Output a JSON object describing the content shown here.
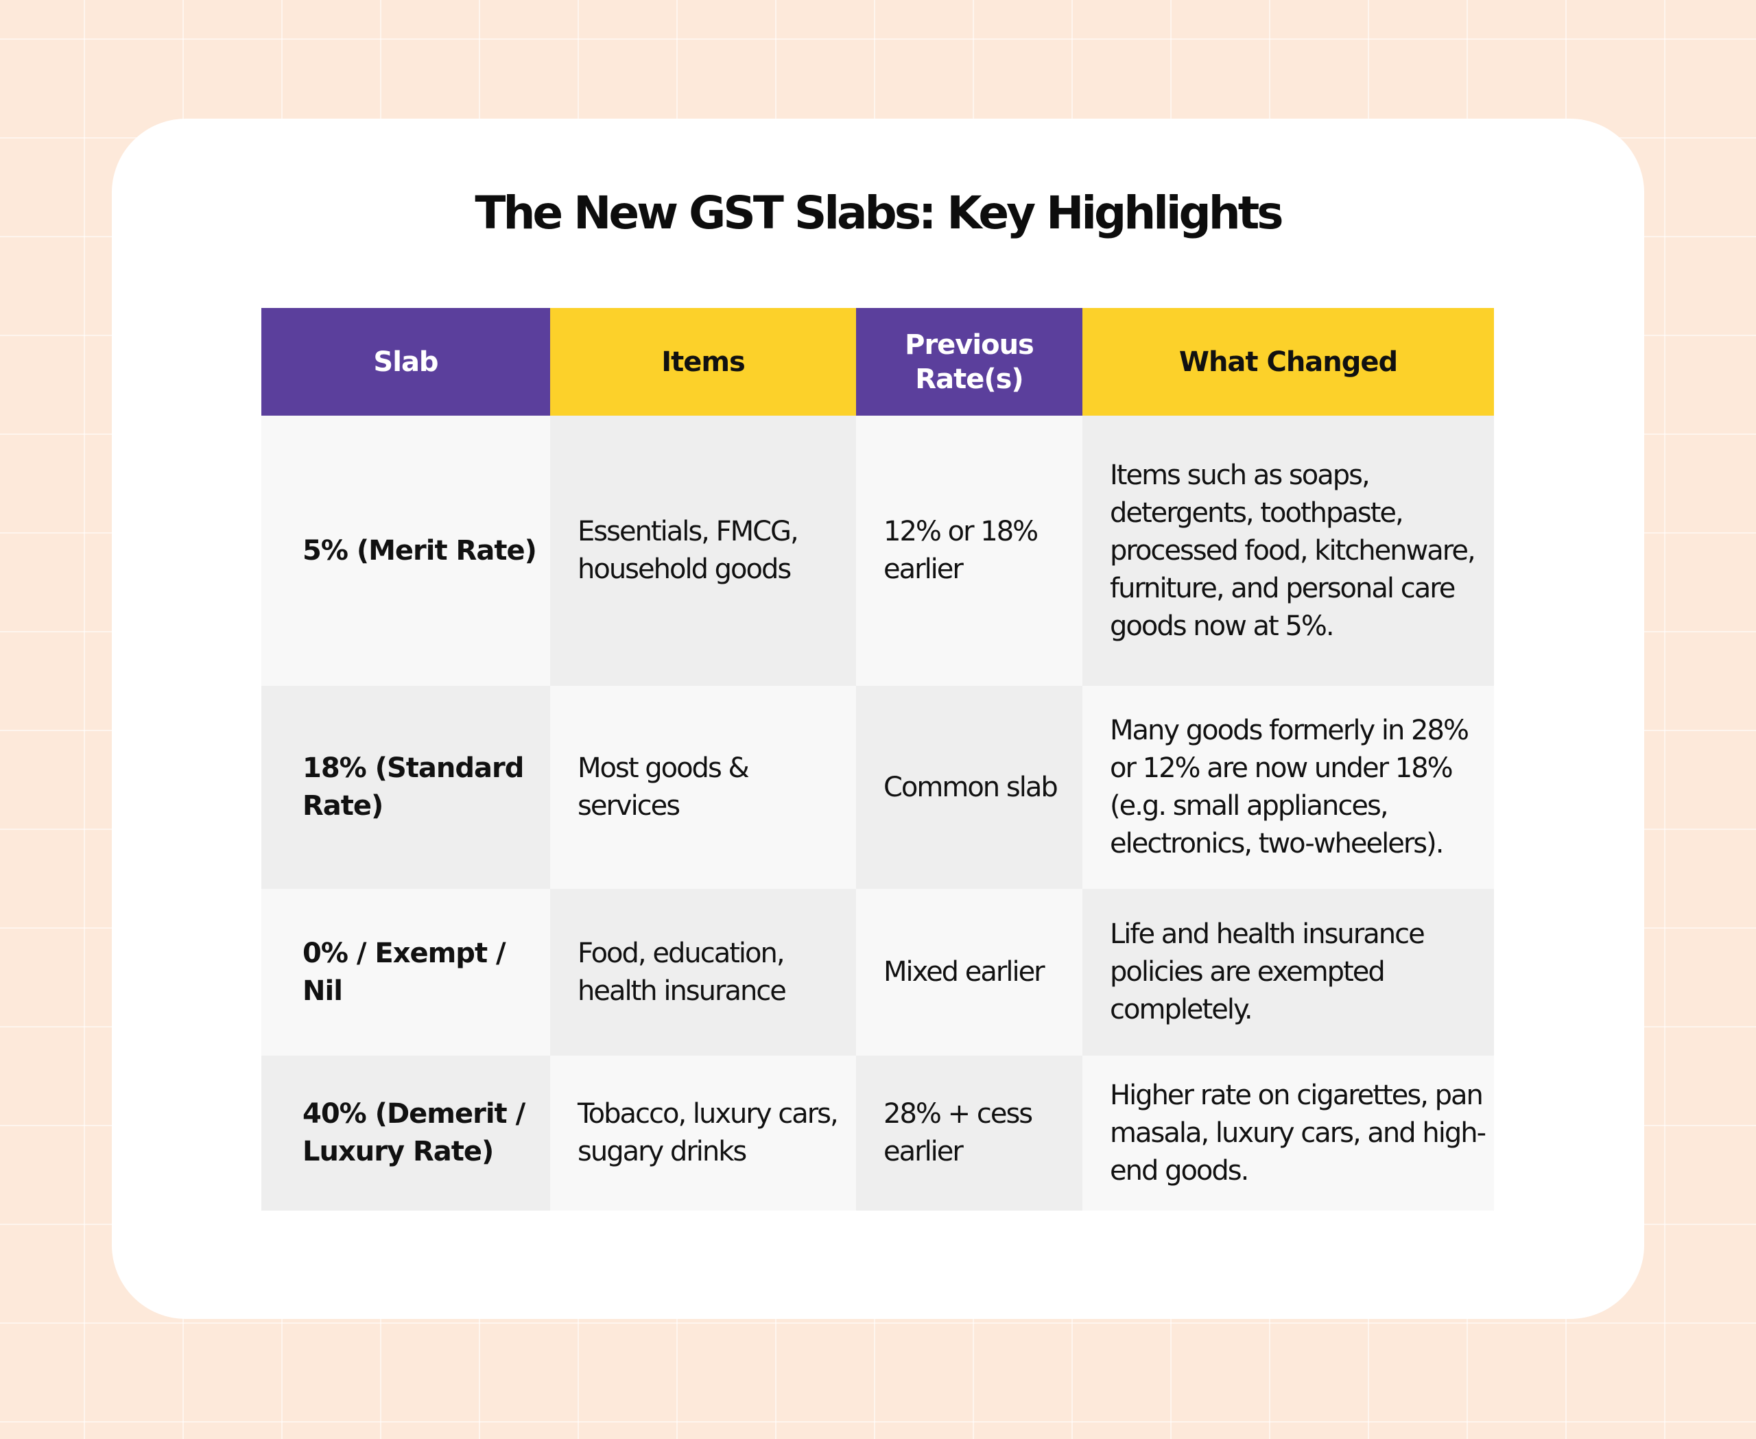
{
  "title": "The New GST Slabs: Key Highlights",
  "colors": {
    "background": "#fde9da",
    "card": "#ffffff",
    "header_purple": "#5b3f9c",
    "header_yellow": "#fcd12a",
    "cell_light": "#f8f8f8",
    "cell_dark": "#eeeeee"
  },
  "table": {
    "headers": {
      "slab": "Slab",
      "items": "Items",
      "previous_rates": "Previous Rate(s)",
      "what_changed": "What Changed"
    },
    "rows": [
      {
        "slab": "5% (Merit Rate)",
        "items": "Essentials, FMCG, household goods",
        "previous_rates": "12% or 18% earlier",
        "what_changed": "Items such as soaps, detergents, toothpaste, processed food, kitchenware, furniture, and personal care goods now at 5%."
      },
      {
        "slab": "18% (Standard Rate)",
        "items": "Most goods & services",
        "previous_rates": "Common slab",
        "what_changed": "Many goods formerly in 28% or 12% are now under 18% (e.g. small appliances, electronics, two-wheelers)."
      },
      {
        "slab": "0% / Exempt / Nil",
        "items": "Food, education, health insurance",
        "previous_rates": "Mixed earlier",
        "what_changed": "Life and health insurance policies are exempted completely."
      },
      {
        "slab": "40% (Demerit / Luxury Rate)",
        "items": "Tobacco, luxury cars, sugary drinks",
        "previous_rates": "28% + cess earlier",
        "what_changed": "Higher rate on cigarettes, pan masala, luxury cars, and high-end goods."
      }
    ]
  }
}
